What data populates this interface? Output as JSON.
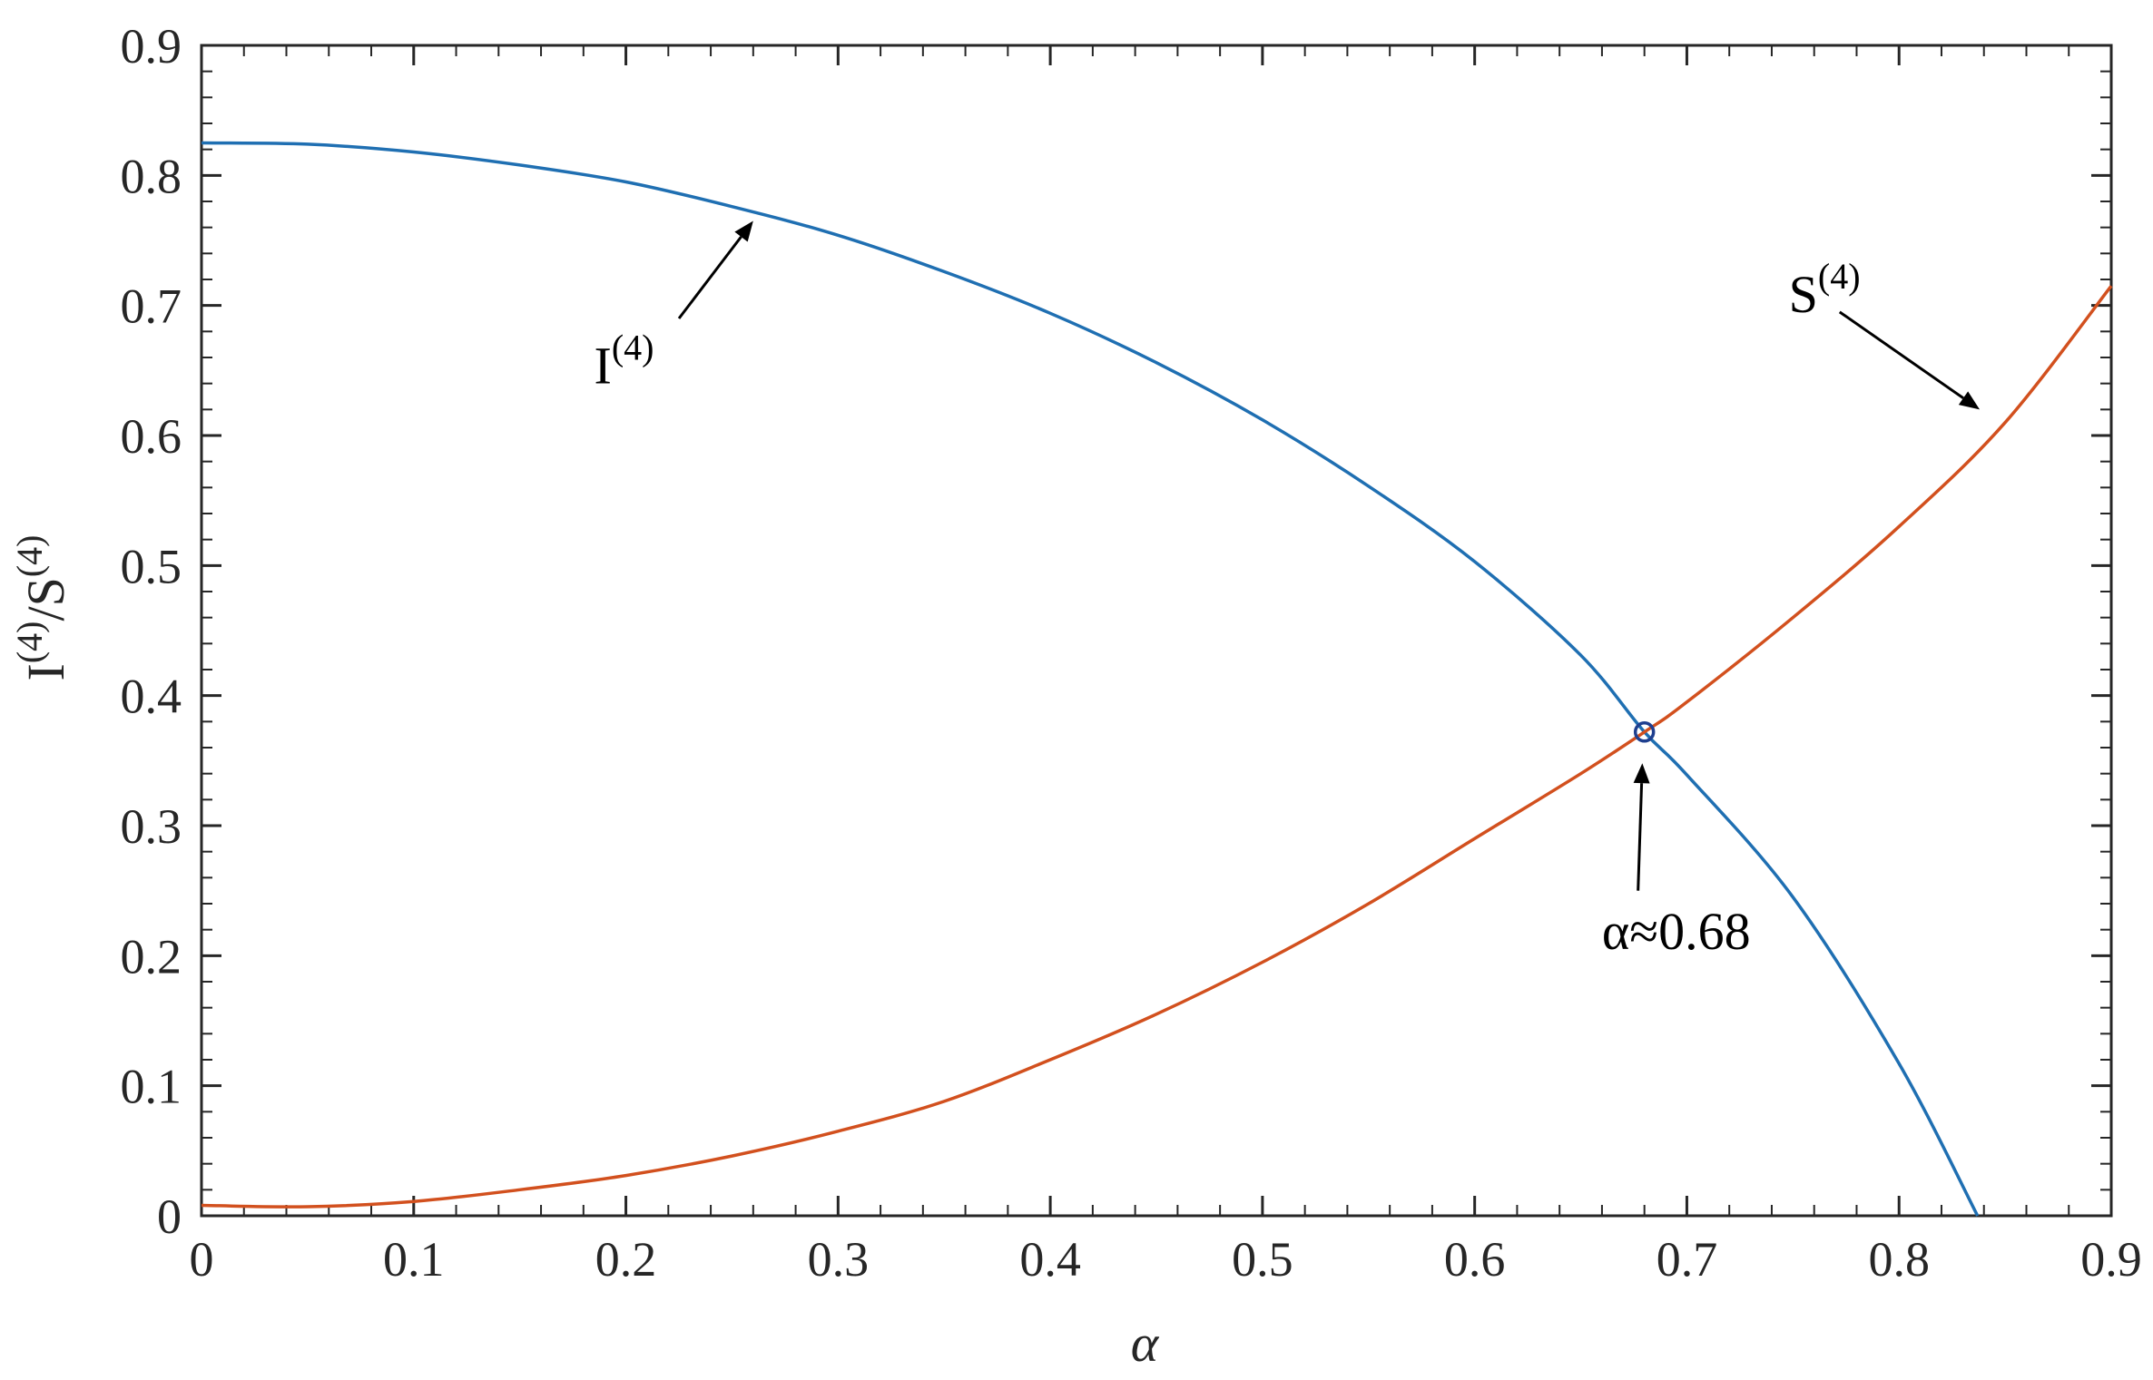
{
  "chart_data": {
    "type": "line",
    "xlabel": "α",
    "ylabel": {
      "main_1": "I",
      "sup_1": "(4)",
      "sep": "/S",
      "sup_2": "(4)"
    },
    "xlim": [
      0,
      0.9
    ],
    "ylim": [
      0,
      0.9
    ],
    "x_ticks": [
      "0",
      "0.1",
      "0.2",
      "0.3",
      "0.4",
      "0.5",
      "0.6",
      "0.7",
      "0.8",
      "0.9"
    ],
    "y_ticks": [
      "0",
      "0.1",
      "0.2",
      "0.3",
      "0.4",
      "0.5",
      "0.6",
      "0.7",
      "0.8",
      "0.9"
    ],
    "grid": false,
    "series": [
      {
        "name": "I(4)",
        "color": "#1f6fb2",
        "points": [
          [
            0,
            0.825
          ],
          [
            0.05,
            0.824
          ],
          [
            0.1,
            0.818
          ],
          [
            0.15,
            0.808
          ],
          [
            0.2,
            0.795
          ],
          [
            0.25,
            0.776
          ],
          [
            0.3,
            0.754
          ],
          [
            0.35,
            0.726
          ],
          [
            0.4,
            0.694
          ],
          [
            0.45,
            0.656
          ],
          [
            0.5,
            0.612
          ],
          [
            0.55,
            0.561
          ],
          [
            0.6,
            0.503
          ],
          [
            0.65,
            0.431
          ],
          [
            0.68,
            0.372
          ],
          [
            0.7,
            0.339
          ],
          [
            0.75,
            0.245
          ],
          [
            0.8,
            0.117
          ],
          [
            0.837,
            0.0
          ]
        ]
      },
      {
        "name": "S(4)",
        "color": "#d2501e",
        "points": [
          [
            0,
            0.008
          ],
          [
            0.05,
            0.007
          ],
          [
            0.1,
            0.011
          ],
          [
            0.15,
            0.02
          ],
          [
            0.2,
            0.031
          ],
          [
            0.25,
            0.046
          ],
          [
            0.3,
            0.065
          ],
          [
            0.35,
            0.088
          ],
          [
            0.4,
            0.12
          ],
          [
            0.45,
            0.155
          ],
          [
            0.5,
            0.195
          ],
          [
            0.55,
            0.24
          ],
          [
            0.6,
            0.29
          ],
          [
            0.65,
            0.34
          ],
          [
            0.68,
            0.372
          ],
          [
            0.7,
            0.395
          ],
          [
            0.75,
            0.46
          ],
          [
            0.8,
            0.53
          ],
          [
            0.85,
            0.61
          ],
          [
            0.9,
            0.715
          ]
        ]
      }
    ],
    "intersection": {
      "x": 0.68,
      "y": 0.372,
      "marker_color": "#1f3f8f"
    },
    "annotations": [
      {
        "id": "label-I",
        "main": "I",
        "sup": "(4)",
        "text_pos": [
          0.185,
          0.64
        ],
        "arrow_from": [
          0.225,
          0.69
        ],
        "arrow_to": [
          0.26,
          0.765
        ]
      },
      {
        "id": "label-S",
        "main": "S",
        "sup": "(4)",
        "text_pos": [
          0.748,
          0.695
        ],
        "arrow_from": [
          0.772,
          0.695
        ],
        "arrow_to": [
          0.838,
          0.62
        ]
      },
      {
        "id": "label-alpha",
        "main": "α≈0.68",
        "sup": "",
        "text_pos": [
          0.66,
          0.205
        ],
        "arrow_from": [
          0.677,
          0.25
        ],
        "arrow_to": [
          0.679,
          0.348
        ]
      }
    ]
  }
}
